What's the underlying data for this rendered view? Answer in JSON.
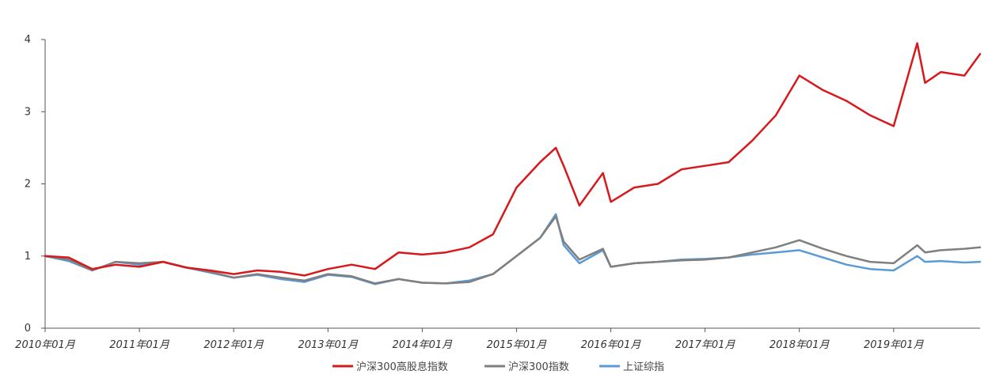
{
  "chart_data": {
    "type": "line",
    "title": "",
    "xlabel": "",
    "ylabel": "",
    "ylim": [
      0,
      4
    ],
    "yticks": [
      "0",
      "1",
      "2",
      "3",
      "4"
    ],
    "x_range": [
      "2010-01",
      "2019-12"
    ],
    "x_tick_labels": [
      "2010年01月",
      "2011年01月",
      "2012年01月",
      "2013年01月",
      "2014年01月",
      "2015年01月",
      "2016年01月",
      "2017年01月",
      "2018年01月",
      "2019年01月"
    ],
    "grid": false,
    "legend_position": "bottom",
    "series": [
      {
        "name": "沪深300高股息指数",
        "color": "#d7191c",
        "points": [
          [
            "2010-01",
            1.0
          ],
          [
            "2010-04",
            0.98
          ],
          [
            "2010-07",
            0.82
          ],
          [
            "2010-10",
            0.88
          ],
          [
            "2011-01",
            0.85
          ],
          [
            "2011-04",
            0.92
          ],
          [
            "2011-07",
            0.84
          ],
          [
            "2011-10",
            0.8
          ],
          [
            "2012-01",
            0.75
          ],
          [
            "2012-04",
            0.8
          ],
          [
            "2012-07",
            0.78
          ],
          [
            "2012-10",
            0.73
          ],
          [
            "2013-01",
            0.82
          ],
          [
            "2013-04",
            0.88
          ],
          [
            "2013-07",
            0.82
          ],
          [
            "2013-10",
            1.05
          ],
          [
            "2014-01",
            1.02
          ],
          [
            "2014-04",
            1.05
          ],
          [
            "2014-07",
            1.12
          ],
          [
            "2014-10",
            1.3
          ],
          [
            "2015-01",
            1.95
          ],
          [
            "2015-04",
            2.3
          ],
          [
            "2015-06",
            2.5
          ],
          [
            "2015-07",
            2.25
          ],
          [
            "2015-09",
            1.7
          ],
          [
            "2015-12",
            2.15
          ],
          [
            "2016-01",
            1.75
          ],
          [
            "2016-04",
            1.95
          ],
          [
            "2016-07",
            2.0
          ],
          [
            "2016-10",
            2.2
          ],
          [
            "2017-01",
            2.25
          ],
          [
            "2017-04",
            2.3
          ],
          [
            "2017-07",
            2.6
          ],
          [
            "2017-10",
            2.95
          ],
          [
            "2018-01",
            3.5
          ],
          [
            "2018-04",
            3.3
          ],
          [
            "2018-07",
            3.15
          ],
          [
            "2018-10",
            2.95
          ],
          [
            "2019-01",
            2.8
          ],
          [
            "2019-04",
            3.95
          ],
          [
            "2019-05",
            3.4
          ],
          [
            "2019-07",
            3.55
          ],
          [
            "2019-10",
            3.5
          ],
          [
            "2019-12",
            3.8
          ]
        ]
      },
      {
        "name": "沪深300指数",
        "color": "#7f7f7f",
        "points": [
          [
            "2010-01",
            1.0
          ],
          [
            "2010-04",
            0.95
          ],
          [
            "2010-07",
            0.8
          ],
          [
            "2010-10",
            0.92
          ],
          [
            "2011-01",
            0.9
          ],
          [
            "2011-04",
            0.92
          ],
          [
            "2011-07",
            0.84
          ],
          [
            "2011-10",
            0.78
          ],
          [
            "2012-01",
            0.7
          ],
          [
            "2012-04",
            0.75
          ],
          [
            "2012-07",
            0.7
          ],
          [
            "2012-10",
            0.66
          ],
          [
            "2013-01",
            0.75
          ],
          [
            "2013-04",
            0.72
          ],
          [
            "2013-07",
            0.62
          ],
          [
            "2013-10",
            0.68
          ],
          [
            "2014-01",
            0.63
          ],
          [
            "2014-04",
            0.62
          ],
          [
            "2014-07",
            0.64
          ],
          [
            "2014-10",
            0.75
          ],
          [
            "2015-01",
            1.0
          ],
          [
            "2015-04",
            1.25
          ],
          [
            "2015-06",
            1.55
          ],
          [
            "2015-07",
            1.2
          ],
          [
            "2015-09",
            0.95
          ],
          [
            "2015-12",
            1.1
          ],
          [
            "2016-01",
            0.85
          ],
          [
            "2016-04",
            0.9
          ],
          [
            "2016-07",
            0.92
          ],
          [
            "2016-10",
            0.94
          ],
          [
            "2017-01",
            0.95
          ],
          [
            "2017-04",
            0.98
          ],
          [
            "2017-07",
            1.05
          ],
          [
            "2017-10",
            1.12
          ],
          [
            "2018-01",
            1.22
          ],
          [
            "2018-04",
            1.1
          ],
          [
            "2018-07",
            1.0
          ],
          [
            "2018-10",
            0.92
          ],
          [
            "2019-01",
            0.9
          ],
          [
            "2019-04",
            1.15
          ],
          [
            "2019-05",
            1.05
          ],
          [
            "2019-07",
            1.08
          ],
          [
            "2019-10",
            1.1
          ],
          [
            "2019-12",
            1.12
          ]
        ]
      },
      {
        "name": "上证综指",
        "color": "#5b9bd5",
        "points": [
          [
            "2010-01",
            1.0
          ],
          [
            "2010-04",
            0.93
          ],
          [
            "2010-07",
            0.8
          ],
          [
            "2010-10",
            0.92
          ],
          [
            "2011-01",
            0.88
          ],
          [
            "2011-04",
            0.92
          ],
          [
            "2011-07",
            0.84
          ],
          [
            "2011-10",
            0.77
          ],
          [
            "2012-01",
            0.7
          ],
          [
            "2012-04",
            0.74
          ],
          [
            "2012-07",
            0.68
          ],
          [
            "2012-10",
            0.64
          ],
          [
            "2013-01",
            0.74
          ],
          [
            "2013-04",
            0.71
          ],
          [
            "2013-07",
            0.61
          ],
          [
            "2013-10",
            0.68
          ],
          [
            "2014-01",
            0.63
          ],
          [
            "2014-04",
            0.62
          ],
          [
            "2014-07",
            0.66
          ],
          [
            "2014-10",
            0.75
          ],
          [
            "2015-01",
            1.0
          ],
          [
            "2015-04",
            1.25
          ],
          [
            "2015-06",
            1.58
          ],
          [
            "2015-07",
            1.15
          ],
          [
            "2015-09",
            0.9
          ],
          [
            "2015-12",
            1.08
          ],
          [
            "2016-01",
            0.85
          ],
          [
            "2016-04",
            0.9
          ],
          [
            "2016-07",
            0.92
          ],
          [
            "2016-10",
            0.95
          ],
          [
            "2017-01",
            0.96
          ],
          [
            "2017-04",
            0.98
          ],
          [
            "2017-07",
            1.02
          ],
          [
            "2017-10",
            1.05
          ],
          [
            "2018-01",
            1.08
          ],
          [
            "2018-04",
            0.98
          ],
          [
            "2018-07",
            0.88
          ],
          [
            "2018-10",
            0.82
          ],
          [
            "2019-01",
            0.8
          ],
          [
            "2019-04",
            1.0
          ],
          [
            "2019-05",
            0.92
          ],
          [
            "2019-07",
            0.93
          ],
          [
            "2019-10",
            0.91
          ],
          [
            "2019-12",
            0.92
          ]
        ]
      }
    ]
  }
}
